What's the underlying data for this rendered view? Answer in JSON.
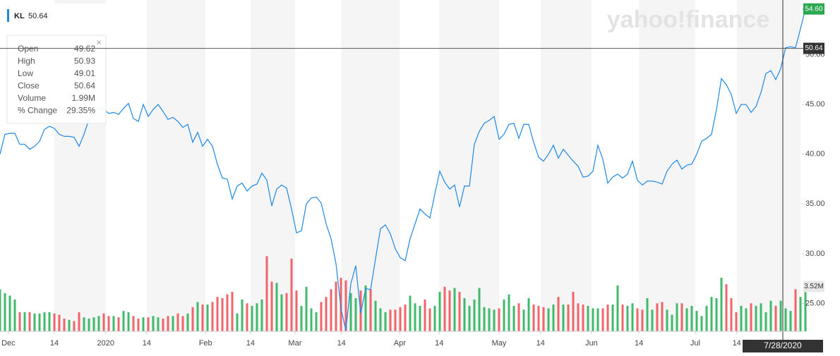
{
  "chart_data": {
    "type": "line",
    "watermark": "yahoo!finance",
    "ticker": "KL",
    "ticker_price": "50.64",
    "tooltip": [
      {
        "label": "Open",
        "value": "49.62"
      },
      {
        "label": "High",
        "value": "50.93"
      },
      {
        "label": "Low",
        "value": "49.01"
      },
      {
        "label": "Close",
        "value": "50.64"
      },
      {
        "label": "Volume",
        "value": "1.99M"
      },
      {
        "label": "% Change",
        "value": "29.35%"
      }
    ],
    "crosshair": {
      "value": 50.64,
      "label": "50.64",
      "date": "7/28/2020"
    },
    "current_price": {
      "value": 54.6,
      "label": "54.60"
    },
    "current_volume": {
      "value": 3.52,
      "label": "3.52M"
    },
    "line_color": "#1e88e5",
    "up_color": "#3fba6b",
    "down_color": "#f0646a",
    "ylim": [
      22.2,
      55.5
    ],
    "yticks": [
      {
        "value": 25,
        "label": "25.00"
      },
      {
        "value": 30,
        "label": "30.00"
      },
      {
        "value": 35,
        "label": "35.00"
      },
      {
        "value": 40,
        "label": "40.00"
      },
      {
        "value": 45,
        "label": "45.00"
      },
      {
        "value": 50,
        "label": "50.00"
      }
    ],
    "xlim": [
      0,
      162
    ],
    "xticks": [
      {
        "value": 1.7,
        "label": "Dec"
      },
      {
        "value": 11,
        "label": "14"
      },
      {
        "value": 21.4,
        "label": "2020"
      },
      {
        "value": 29.7,
        "label": "14"
      },
      {
        "value": 41.6,
        "label": "Feb"
      },
      {
        "value": 50.7,
        "label": "14"
      },
      {
        "value": 59.7,
        "label": "Mar"
      },
      {
        "value": 69.1,
        "label": "14"
      },
      {
        "value": 80.9,
        "label": "Apr"
      },
      {
        "value": 88.9,
        "label": "14"
      },
      {
        "value": 101,
        "label": "May"
      },
      {
        "value": 109.4,
        "label": "14"
      },
      {
        "value": 119.7,
        "label": "Jun"
      },
      {
        "value": 129.3,
        "label": "14"
      },
      {
        "value": 140.7,
        "label": "Jul"
      },
      {
        "value": 149.1,
        "label": "14"
      }
    ],
    "vlim": [
      0,
      26
    ],
    "values": [
      40.0,
      42.0,
      42.1,
      42.1,
      41.0,
      41.0,
      40.5,
      40.8,
      41.3,
      42.5,
      42.8,
      42.6,
      42.0,
      41.8,
      41.8,
      41.7,
      40.8,
      42.0,
      43.5,
      44.5,
      44.6,
      44.5,
      44.1,
      44.2,
      44.0,
      44.6,
      45.1,
      43.6,
      43.3,
      45.0,
      43.8,
      44.5,
      45.0,
      44.3,
      43.5,
      43.7,
      43.3,
      42.7,
      43.0,
      41.2,
      42.2,
      40.8,
      41.5,
      40.8,
      39.0,
      37.6,
      37.5,
      35.5,
      36.8,
      37.1,
      36.3,
      36.8,
      37.0,
      38.1,
      37.4,
      34.8,
      36.5,
      36.9,
      36.6,
      34.5,
      32.1,
      32.3,
      35.0,
      35.6,
      35.7,
      35.1,
      33.0,
      31.5,
      29.0,
      24.5,
      22.3,
      27.0,
      28.8,
      24.0,
      26.5,
      26.4,
      29.5,
      32.5,
      32.9,
      32.0,
      30.5,
      29.6,
      29.3,
      31.5,
      33.0,
      34.5,
      34.0,
      33.6,
      36.0,
      38.3,
      37.2,
      36.5,
      36.9,
      34.7,
      36.8,
      36.8,
      41.0,
      42.3,
      43.1,
      43.4,
      43.8,
      41.5,
      42.0,
      43.0,
      43.1,
      41.6,
      43.0,
      43.0,
      41.2,
      39.7,
      39.3,
      40.0,
      40.9,
      39.6,
      40.5,
      39.9,
      39.3,
      38.8,
      37.7,
      37.8,
      38.3,
      40.9,
      39.5,
      37.1,
      37.7,
      38.0,
      37.6,
      38.0,
      39.3,
      37.4,
      36.9,
      37.3,
      37.3,
      37.2,
      37.0,
      38.3,
      39.0,
      39.4,
      38.5,
      38.9,
      39.0,
      40.0,
      41.3,
      41.6,
      42.0,
      44.5,
      47.6,
      47.0,
      46.0,
      44.1,
      45.0,
      45.0,
      44.2,
      44.8,
      46.2,
      48.1,
      48.4,
      47.5,
      48.6,
      50.7,
      50.8,
      50.7,
      52.6,
      54.6
    ],
    "volume": [
      3.3,
      3.0,
      2.8,
      2.5,
      1.5,
      1.5,
      1.5,
      1.4,
      1.4,
      1.5,
      1.5,
      1.4,
      1.3,
      1.0,
      0.9,
      0.8,
      1.5,
      1.1,
      1.0,
      1.1,
      1.2,
      1.4,
      1.2,
      1.2,
      1.1,
      1.6,
      1.5,
      1.2,
      1.0,
      1.1,
      1.1,
      1.2,
      1.1,
      1.0,
      1.2,
      1.2,
      1.4,
      1.2,
      1.4,
      1.9,
      2.3,
      2.1,
      2.1,
      2.3,
      2.7,
      2.6,
      2.9,
      3.1,
      1.4,
      2.5,
      2.2,
      2.0,
      2.2,
      2.5,
      5.9,
      3.9,
      3.8,
      2.9,
      3.0,
      5.7,
      3.2,
      2.0,
      3.5,
      1.8,
      1.5,
      2.3,
      2.7,
      3.3,
      3.9,
      4.2,
      4.0,
      3.0,
      2.6,
      3.2,
      3.6,
      3.3,
      2.4,
      1.8,
      1.5,
      1.7,
      1.7,
      1.9,
      2.1,
      2.8,
      2.2,
      2.0,
      2.5,
      1.8,
      2.0,
      3.1,
      3.5,
      3.2,
      3.4,
      3.1,
      2.6,
      2.0,
      2.5,
      3.4,
      1.9,
      1.8,
      1.7,
      1.8,
      2.5,
      2.9,
      2.0,
      2.2,
      1.7,
      2.6,
      2.1,
      2.0,
      1.9,
      1.8,
      2.1,
      2.7,
      2.1,
      2.1,
      3.1,
      2.2,
      2.1,
      2.0,
      1.8,
      1.8,
      1.8,
      2.1,
      2.1,
      3.6,
      2.1,
      2.0,
      2.2,
      1.8,
      1.7,
      2.6,
      1.7,
      2.2,
      2.3,
      1.7,
      1.3,
      2.2,
      2.2,
      1.8,
      2.0,
      1.6,
      1.2,
      2.0,
      2.7,
      2.6,
      4.2,
      3.7,
      2.6,
      1.5,
      2.0,
      1.8,
      2.2,
      2.0,
      2.2,
      1.5,
      2.4,
      2.0,
      2.4,
      1.8,
      1.6,
      3.3,
      2.7,
      3.52
    ]
  }
}
